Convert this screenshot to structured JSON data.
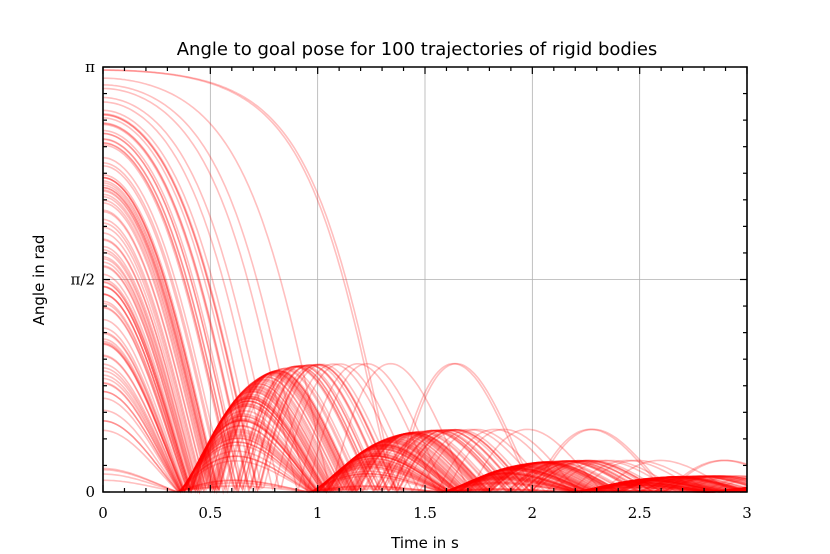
{
  "chart_data": {
    "type": "line",
    "title": "Angle to goal pose for 100 trajectories of rigid bodies",
    "xlabel": "Time in s",
    "ylabel": "Angle in rad",
    "xlim": [
      0,
      3
    ],
    "ylim": [
      0,
      3.14159
    ],
    "x_ticks": [
      {
        "value": 0,
        "label": "0"
      },
      {
        "value": 0.5,
        "label": "0.5"
      },
      {
        "value": 1,
        "label": "1"
      },
      {
        "value": 1.5,
        "label": "1.5"
      },
      {
        "value": 2,
        "label": "2"
      },
      {
        "value": 2.5,
        "label": "2.5"
      },
      {
        "value": 3,
        "label": "3"
      }
    ],
    "y_ticks": [
      {
        "value": 0,
        "label": "0"
      },
      {
        "value": 1.5708,
        "label": "π/2"
      },
      {
        "value": 3.14159,
        "label": "π"
      }
    ],
    "grid": true,
    "series_count": 100,
    "line_color": "#ff0000",
    "line_opacity": 0.25,
    "initial_angle_range": [
      0.05,
      3.13
    ],
    "settle_time": 3
  }
}
